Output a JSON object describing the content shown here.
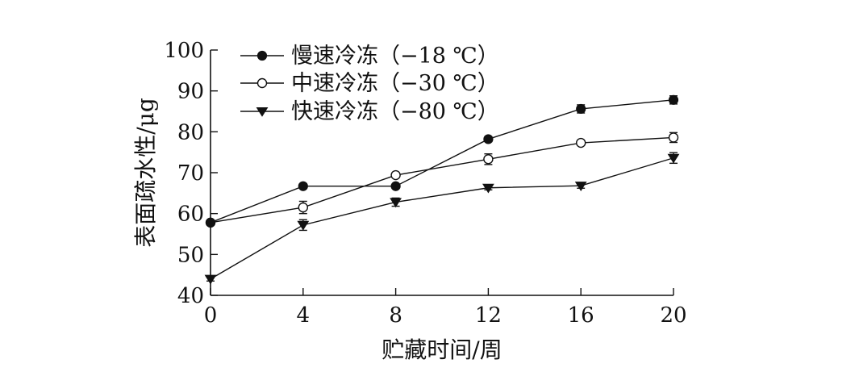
{
  "chart_data": {
    "type": "line",
    "xlabel": "贮藏时间/周",
    "ylabel": "表面疏水性/μg",
    "x": [
      0,
      4,
      8,
      12,
      16,
      20
    ],
    "xlim": [
      0,
      20
    ],
    "ylim": [
      40,
      100
    ],
    "xticks": [
      "0",
      "4",
      "8",
      "12",
      "16",
      "20"
    ],
    "yticks": [
      "40",
      "50",
      "60",
      "70",
      "80",
      "90",
      "100"
    ],
    "grid": false,
    "legend_position": "top-left",
    "series": [
      {
        "name": "慢速冷冻（−18 ℃）",
        "marker": "filled-circle",
        "values": [
          57.8,
          66.7,
          66.7,
          78.2,
          85.6,
          87.8
        ],
        "errors": [
          0.6,
          0.6,
          0.5,
          0.6,
          1.0,
          1.0
        ]
      },
      {
        "name": "中速冷冻（−30 ℃）",
        "marker": "open-circle",
        "values": [
          57.8,
          61.5,
          69.4,
          73.3,
          77.3,
          78.6
        ],
        "errors": [
          0.6,
          1.5,
          0.6,
          1.3,
          0.5,
          1.2
        ]
      },
      {
        "name": "快速冷冻（−80 ℃）",
        "marker": "filled-triangle-down",
        "values": [
          44.0,
          57.2,
          62.8,
          66.3,
          66.8,
          73.6
        ],
        "errors": [
          0.5,
          1.3,
          1.0,
          0.5,
          0.6,
          1.3
        ]
      }
    ]
  }
}
